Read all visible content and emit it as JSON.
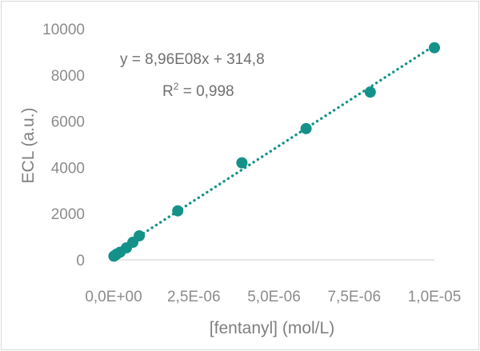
{
  "chart_data": {
    "type": "scatter",
    "xlabel": "[fentanyl] (mol/L)",
    "ylabel": "ECL (a.u.)",
    "xlim": [
      0,
      1e-05
    ],
    "ylim": [
      0,
      10000
    ],
    "x_ticks": [
      0,
      2.5e-06,
      5e-06,
      7.5e-06,
      1e-05
    ],
    "x_tick_labels": [
      "0,0E+00",
      "2,5E-06",
      "5,0E-06",
      "7,5E-06",
      "1,0E-05"
    ],
    "y_ticks": [
      0,
      2000,
      4000,
      6000,
      8000,
      10000
    ],
    "y_tick_labels": [
      "0",
      "2000",
      "4000",
      "6000",
      "8000",
      "10000"
    ],
    "grid": "none",
    "legend": "none",
    "series": [
      {
        "x": [
          1e-08,
          5e-08,
          1e-07,
          2e-07,
          4e-07,
          6e-07,
          8e-07,
          2e-06,
          4e-06,
          6e-06,
          8e-06,
          1e-05
        ],
        "y": [
          160,
          200,
          250,
          330,
          520,
          760,
          1040,
          2120,
          4200,
          5680,
          7260,
          9180
        ]
      }
    ],
    "trendline": {
      "type": "linear",
      "slope": 896000000,
      "intercept": 314.8,
      "style": "dotted",
      "equation_label": "y = 8,96E08x + 314,8",
      "r2_prefix": "R",
      "r2_sup": "2",
      "r2_value": " = 0,998"
    },
    "colors": {
      "series": "#14928a",
      "trendline": "#14928a",
      "tick_text": "#8c8c8c",
      "axis_title": "#7f7f7f",
      "axis_line": "#d9d9d9"
    }
  }
}
